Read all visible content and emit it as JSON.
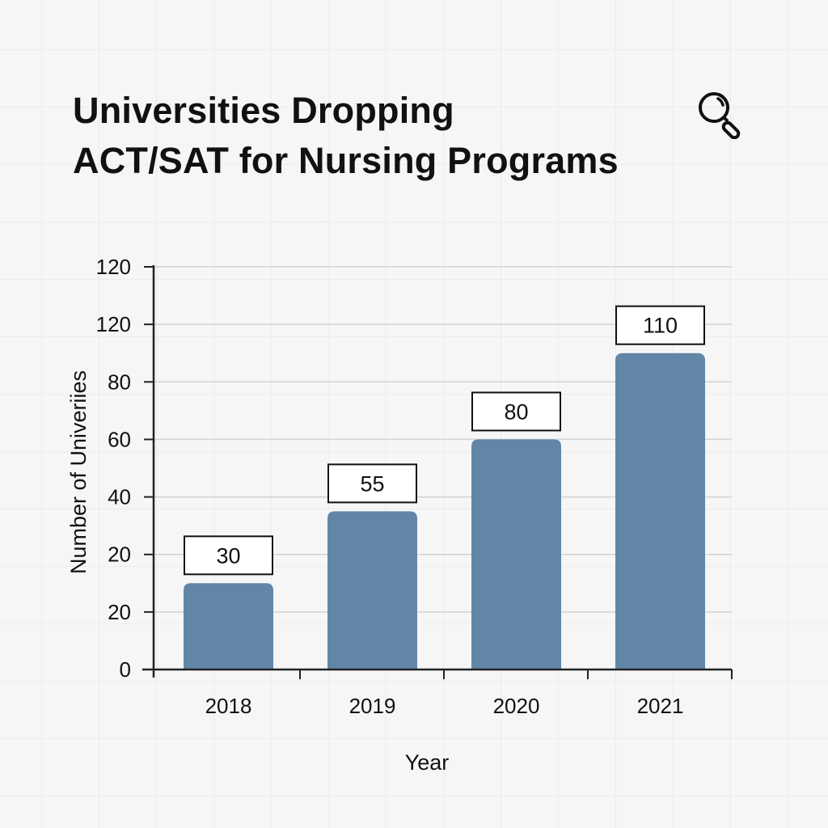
{
  "chart_data": {
    "type": "bar",
    "title": "Universities Dropping ACT/SAT for Nursing Programs",
    "title_lines": [
      "Universities Dropping",
      "ACT/SAT for Nursing Programs"
    ],
    "categories": [
      "2018",
      "2019",
      "2020",
      "2021"
    ],
    "values": [
      30,
      55,
      80,
      110
    ],
    "data_labels": [
      "30",
      "55",
      "80",
      "110"
    ],
    "xlabel": "Year",
    "ylabel": "Number of Univeriies",
    "y_tick_labels": [
      "0",
      "20",
      "20",
      "40",
      "60",
      "80",
      "120",
      "120"
    ],
    "ylim": [
      0,
      140
    ],
    "grid": true,
    "bar_color": "#6286a7"
  },
  "icons": {
    "magnifier": "search-icon"
  }
}
